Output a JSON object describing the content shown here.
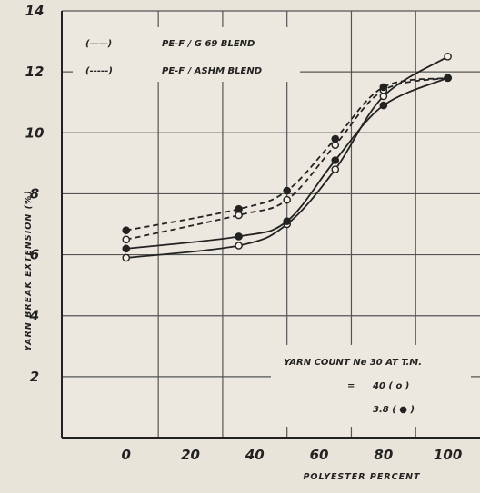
{
  "chart_data": {
    "type": "line",
    "title": "",
    "xlabel": "POLYESTER   PERCENT",
    "ylabel": "YARN   BREAK   EXTENSION  (%)",
    "xlim": [
      -20,
      110
    ],
    "ylim": [
      0,
      14
    ],
    "x_ticks": [
      0,
      20,
      40,
      60,
      80,
      100
    ],
    "y_ticks": [
      2,
      4,
      6,
      8,
      10,
      12,
      14
    ],
    "grid": true,
    "legend_position": "top-left",
    "legend": [
      {
        "marker": "(——)",
        "label": "PE-F / G 69  BLEND",
        "style": "solid"
      },
      {
        "marker": "(-----)",
        "label": "PE-F / ASHM  BLEND",
        "style": "dashed"
      }
    ],
    "annotation": {
      "line1": "YARN   COUNT   Ne 30 AT  T.M.",
      "line2_prefix": "=",
      "line2": "40  ( o  )",
      "line3": "3.8  (  ●  )"
    },
    "series": [
      {
        "style": "solid",
        "marker": "open",
        "x": [
          0,
          35,
          50,
          65,
          80,
          100
        ],
        "y": [
          5.9,
          6.3,
          7.0,
          8.8,
          11.2,
          12.5
        ]
      },
      {
        "style": "solid",
        "marker": "filled",
        "x": [
          0,
          35,
          50,
          65,
          80,
          100
        ],
        "y": [
          6.2,
          6.6,
          7.1,
          9.1,
          10.9,
          11.8
        ]
      },
      {
        "style": "dashed",
        "marker": "open",
        "x": [
          0,
          35,
          50,
          65,
          80,
          100
        ],
        "y": [
          6.5,
          7.3,
          7.8,
          9.6,
          11.4,
          11.8
        ]
      },
      {
        "style": "dashed",
        "marker": "filled",
        "x": [
          0,
          35,
          50,
          65,
          80,
          100
        ],
        "y": [
          6.8,
          7.5,
          8.1,
          9.8,
          11.5,
          11.8
        ]
      }
    ]
  }
}
